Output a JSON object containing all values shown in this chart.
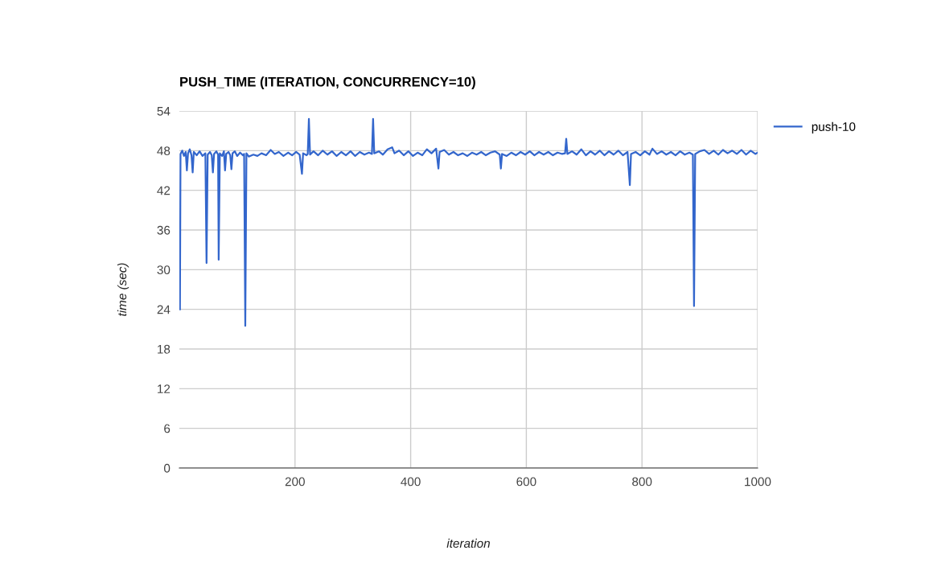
{
  "chart_data": {
    "type": "line",
    "title": "PUSH_TIME (ITERATION, CONCURRENCY=10)",
    "xlabel": "iteration",
    "ylabel": "time (sec)",
    "xlim": [
      0,
      1000
    ],
    "xticks": [
      200,
      400,
      600,
      800,
      1000
    ],
    "ylim": [
      0,
      54
    ],
    "yticks": [
      0,
      6,
      12,
      18,
      24,
      30,
      36,
      42,
      48,
      54
    ],
    "grid": true,
    "legend": "top right",
    "marker": "none",
    "line_style": "solid",
    "series": [
      {
        "name": "push-10",
        "color": "#3366cc",
        "x": [
          1,
          2,
          5,
          8,
          11,
          13,
          15,
          18,
          21,
          23,
          25,
          30,
          35,
          40,
          45,
          47,
          49,
          53,
          56,
          58,
          60,
          64,
          67,
          68,
          70,
          74,
          77,
          79,
          81,
          85,
          88,
          90,
          92,
          96,
          100,
          105,
          110,
          112,
          114,
          116,
          120,
          128,
          135,
          142,
          150,
          158,
          165,
          172,
          180,
          188,
          195,
          202,
          208,
          212,
          214,
          220,
          222,
          224,
          226,
          232,
          240,
          248,
          256,
          264,
          272,
          280,
          288,
          296,
          304,
          312,
          320,
          328,
          333,
          335,
          337,
          345,
          352,
          360,
          368,
          372,
          380,
          388,
          396,
          404,
          412,
          420,
          428,
          436,
          444,
          448,
          450,
          458,
          466,
          474,
          482,
          490,
          498,
          506,
          514,
          522,
          530,
          538,
          546,
          554,
          556,
          558,
          566,
          574,
          582,
          590,
          598,
          606,
          614,
          622,
          630,
          638,
          646,
          654,
          662,
          667,
          669,
          671,
          679,
          687,
          695,
          703,
          711,
          719,
          727,
          735,
          743,
          751,
          759,
          767,
          775,
          779,
          781,
          789,
          797,
          805,
          813,
          818,
          826,
          834,
          842,
          850,
          858,
          866,
          874,
          882,
          888,
          890,
          892,
          900,
          908,
          916,
          924,
          932,
          940,
          948,
          956,
          964,
          972,
          980,
          988,
          996,
          1000
        ],
        "values": [
          24,
          47.5,
          48,
          47.2,
          47.8,
          45,
          47.6,
          48.2,
          47.3,
          44.7,
          47.8,
          47.3,
          47.9,
          47.2,
          47.6,
          31,
          47.4,
          47.8,
          47.3,
          44.7,
          47.5,
          47.9,
          47.4,
          31.5,
          47.6,
          47.2,
          47.9,
          45,
          47.5,
          47.8,
          47.3,
          45.2,
          47.6,
          47.9,
          47.2,
          47.7,
          47.3,
          47.5,
          21.5,
          47.6,
          47.1,
          47.4,
          47.2,
          47.6,
          47.3,
          48.1,
          47.5,
          47.8,
          47.2,
          47.7,
          47.3,
          47.8,
          47.4,
          44.5,
          47.6,
          47.3,
          47.5,
          52.8,
          47.4,
          47.9,
          47.3,
          48,
          47.4,
          47.9,
          47.2,
          47.8,
          47.3,
          47.9,
          47.2,
          47.8,
          47.4,
          47.7,
          47.5,
          52.8,
          47.6,
          47.9,
          47.4,
          48.2,
          48.5,
          47.6,
          48,
          47.3,
          47.9,
          47.2,
          47.7,
          47.3,
          48.2,
          47.6,
          48.3,
          45.3,
          47.8,
          48.1,
          47.4,
          47.8,
          47.3,
          47.6,
          47.2,
          47.7,
          47.4,
          47.8,
          47.3,
          47.7,
          47.9,
          47.4,
          45.3,
          47.5,
          47.2,
          47.7,
          47.3,
          47.8,
          47.4,
          47.9,
          47.3,
          47.8,
          47.4,
          47.8,
          47.3,
          47.7,
          47.5,
          47.6,
          49.8,
          47.5,
          47.9,
          47.4,
          48.2,
          47.3,
          47.9,
          47.4,
          48,
          47.3,
          47.9,
          47.4,
          48,
          47.3,
          47.8,
          42.8,
          47.5,
          47.8,
          47.3,
          47.9,
          47.4,
          48.3,
          47.5,
          47.9,
          47.4,
          47.8,
          47.3,
          47.9,
          47.4,
          47.7,
          47.4,
          24.5,
          47.5,
          47.9,
          48.1,
          47.5,
          48,
          47.4,
          48.1,
          47.6,
          48,
          47.5,
          48.1,
          47.4,
          48,
          47.5,
          47.7
        ]
      }
    ]
  }
}
